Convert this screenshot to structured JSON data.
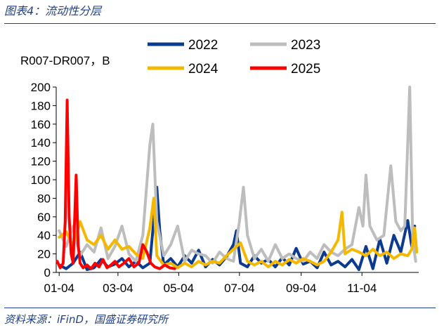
{
  "header": {
    "title": "图表4：流动性分层"
  },
  "footer": {
    "source": "资料来源：iFinD，国盛证券研究所"
  },
  "chart_data": {
    "type": "line",
    "title": "",
    "ylabel": "R007-DR007，B",
    "xlabel": "",
    "ylim": [
      0,
      200
    ],
    "yticks": [
      0,
      20,
      40,
      60,
      80,
      100,
      120,
      140,
      160,
      180,
      200
    ],
    "xlim": [
      "01-01",
      "12-31"
    ],
    "xtick_labels": [
      "01-04",
      "03-04",
      "05-04",
      "07-04",
      "09-04",
      "11-04"
    ],
    "xtick_dates": [
      "01-04",
      "03-04",
      "05-04",
      "07-04",
      "09-04",
      "11-04"
    ],
    "grid": false,
    "legend": "top",
    "series": [
      {
        "name": "2022",
        "color": "#0b3a8f",
        "points": [
          [
            "01-04",
            8
          ],
          [
            "01-11",
            4
          ],
          [
            "01-18",
            10
          ],
          [
            "01-25",
            22
          ],
          [
            "02-01",
            3
          ],
          [
            "02-08",
            5
          ],
          [
            "02-15",
            14
          ],
          [
            "02-22",
            6
          ],
          [
            "03-01",
            9
          ],
          [
            "03-08",
            15
          ],
          [
            "03-15",
            6
          ],
          [
            "03-22",
            12
          ],
          [
            "03-29",
            5
          ],
          [
            "04-05",
            10
          ],
          [
            "04-12",
            92
          ],
          [
            "04-15",
            45
          ],
          [
            "04-19",
            8
          ],
          [
            "04-26",
            15
          ],
          [
            "05-03",
            6
          ],
          [
            "05-10",
            18
          ],
          [
            "05-17",
            10
          ],
          [
            "05-24",
            24
          ],
          [
            "05-31",
            6
          ],
          [
            "06-07",
            14
          ],
          [
            "06-14",
            8
          ],
          [
            "06-21",
            17
          ],
          [
            "06-28",
            30
          ],
          [
            "07-01",
            45
          ],
          [
            "07-05",
            10
          ],
          [
            "07-12",
            6
          ],
          [
            "07-19",
            18
          ],
          [
            "07-26",
            10
          ],
          [
            "08-02",
            14
          ],
          [
            "08-09",
            6
          ],
          [
            "08-16",
            16
          ],
          [
            "08-23",
            8
          ],
          [
            "08-30",
            26
          ],
          [
            "09-06",
            9
          ],
          [
            "09-13",
            12
          ],
          [
            "09-20",
            5
          ],
          [
            "09-27",
            22
          ],
          [
            "10-04",
            8
          ],
          [
            "10-11",
            12
          ],
          [
            "10-18",
            6
          ],
          [
            "10-25",
            14
          ],
          [
            "11-01",
            3
          ],
          [
            "11-08",
            28
          ],
          [
            "11-15",
            4
          ],
          [
            "11-22",
            36
          ],
          [
            "11-29",
            10
          ],
          [
            "12-06",
            40
          ],
          [
            "12-13",
            22
          ],
          [
            "12-20",
            56
          ],
          [
            "12-24",
            28
          ],
          [
            "12-27",
            50
          ]
        ]
      },
      {
        "name": "2023",
        "color": "#bdbdbd",
        "points": [
          [
            "01-04",
            45
          ],
          [
            "01-11",
            28
          ],
          [
            "01-18",
            50
          ],
          [
            "01-25",
            18
          ],
          [
            "02-01",
            30
          ],
          [
            "02-08",
            22
          ],
          [
            "02-15",
            48
          ],
          [
            "02-22",
            15
          ],
          [
            "03-01",
            28
          ],
          [
            "03-08",
            50
          ],
          [
            "03-15",
            20
          ],
          [
            "03-22",
            12
          ],
          [
            "03-29",
            40
          ],
          [
            "04-05",
            138
          ],
          [
            "04-08",
            160
          ],
          [
            "04-12",
            55
          ],
          [
            "04-19",
            18
          ],
          [
            "04-26",
            30
          ],
          [
            "05-03",
            50
          ],
          [
            "05-10",
            12
          ],
          [
            "05-17",
            24
          ],
          [
            "05-24",
            20
          ],
          [
            "05-31",
            18
          ],
          [
            "06-07",
            10
          ],
          [
            "06-14",
            22
          ],
          [
            "06-21",
            15
          ],
          [
            "06-28",
            12
          ],
          [
            "07-04",
            55
          ],
          [
            "07-08",
            92
          ],
          [
            "07-12",
            40
          ],
          [
            "07-19",
            15
          ],
          [
            "07-26",
            25
          ],
          [
            "08-02",
            12
          ],
          [
            "08-09",
            30
          ],
          [
            "08-16",
            15
          ],
          [
            "08-23",
            20
          ],
          [
            "08-30",
            15
          ],
          [
            "09-06",
            12
          ],
          [
            "09-13",
            22
          ],
          [
            "09-20",
            15
          ],
          [
            "09-27",
            30
          ],
          [
            "10-04",
            22
          ],
          [
            "10-11",
            18
          ],
          [
            "10-18",
            25
          ],
          [
            "10-25",
            30
          ],
          [
            "11-01",
            70
          ],
          [
            "11-05",
            50
          ],
          [
            "11-08",
            105
          ],
          [
            "11-12",
            50
          ],
          [
            "11-19",
            35
          ],
          [
            "11-26",
            40
          ],
          [
            "12-03",
            115
          ],
          [
            "12-08",
            55
          ],
          [
            "12-13",
            45
          ],
          [
            "12-17",
            50
          ],
          [
            "12-22",
            200
          ],
          [
            "12-25",
            35
          ],
          [
            "12-28",
            12
          ]
        ]
      },
      {
        "name": "2024",
        "color": "#f5b800",
        "points": [
          [
            "01-04",
            38
          ],
          [
            "01-11",
            44
          ],
          [
            "01-18",
            28
          ],
          [
            "01-25",
            55
          ],
          [
            "02-01",
            35
          ],
          [
            "02-08",
            30
          ],
          [
            "02-15",
            40
          ],
          [
            "02-22",
            25
          ],
          [
            "03-01",
            35
          ],
          [
            "03-08",
            25
          ],
          [
            "03-15",
            28
          ],
          [
            "03-22",
            20
          ],
          [
            "03-29",
            15
          ],
          [
            "04-05",
            48
          ],
          [
            "04-09",
            80
          ],
          [
            "04-12",
            18
          ],
          [
            "04-19",
            8
          ],
          [
            "04-26",
            10
          ],
          [
            "05-03",
            5
          ],
          [
            "05-10",
            10
          ],
          [
            "05-17",
            6
          ],
          [
            "05-24",
            12
          ],
          [
            "05-31",
            8
          ],
          [
            "06-07",
            12
          ],
          [
            "06-14",
            10
          ],
          [
            "06-21",
            18
          ],
          [
            "06-28",
            25
          ],
          [
            "07-05",
            32
          ],
          [
            "07-12",
            12
          ],
          [
            "07-19",
            8
          ],
          [
            "07-26",
            12
          ],
          [
            "08-02",
            6
          ],
          [
            "08-09",
            12
          ],
          [
            "08-16",
            8
          ],
          [
            "08-23",
            14
          ],
          [
            "08-30",
            10
          ],
          [
            "09-06",
            15
          ],
          [
            "09-13",
            12
          ],
          [
            "09-20",
            8
          ],
          [
            "09-27",
            12
          ],
          [
            "10-04",
            22
          ],
          [
            "10-11",
            35
          ],
          [
            "10-15",
            65
          ],
          [
            "10-18",
            20
          ],
          [
            "10-25",
            25
          ],
          [
            "11-01",
            22
          ],
          [
            "11-08",
            18
          ],
          [
            "11-15",
            25
          ],
          [
            "11-22",
            18
          ],
          [
            "11-29",
            22
          ],
          [
            "12-06",
            15
          ],
          [
            "12-13",
            20
          ],
          [
            "12-20",
            18
          ],
          [
            "12-24",
            25
          ],
          [
            "12-27",
            48
          ],
          [
            "12-29",
            22
          ]
        ]
      },
      {
        "name": "2025",
        "color": "#ff0000",
        "points": [
          [
            "01-02",
            12
          ],
          [
            "01-05",
            5
          ],
          [
            "01-08",
            10
          ],
          [
            "01-10",
            55
          ],
          [
            "01-12",
            186
          ],
          [
            "01-14",
            60
          ],
          [
            "01-16",
            20
          ],
          [
            "01-18",
            10
          ],
          [
            "01-21",
            105
          ],
          [
            "01-23",
            30
          ],
          [
            "01-25",
            10
          ],
          [
            "01-28",
            5
          ],
          [
            "02-01",
            8
          ],
          [
            "02-05",
            4
          ],
          [
            "02-09",
            10
          ],
          [
            "02-13",
            6
          ],
          [
            "02-17",
            14
          ],
          [
            "02-21",
            5
          ],
          [
            "02-25",
            8
          ],
          [
            "03-01",
            12
          ],
          [
            "03-05",
            6
          ],
          [
            "03-10",
            10
          ],
          [
            "03-15",
            15
          ],
          [
            "03-20",
            6
          ],
          [
            "03-25",
            10
          ],
          [
            "03-29",
            30
          ],
          [
            "04-02",
            22
          ],
          [
            "04-06",
            10
          ],
          [
            "04-10",
            6
          ],
          [
            "04-15",
            4
          ],
          [
            "04-20",
            8
          ],
          [
            "04-25",
            5
          ],
          [
            "04-30",
            4
          ]
        ]
      }
    ]
  }
}
